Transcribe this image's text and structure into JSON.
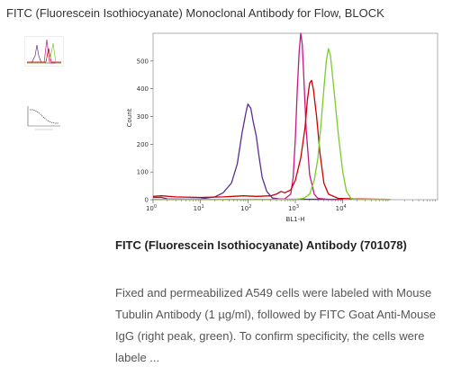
{
  "header": {
    "title": "FITC (Fluorescein Isothiocyanate) Monoclonal Antibody for Flow, BLOCK"
  },
  "thumbnails": [
    {
      "name": "flow-histogram-thumbnail"
    },
    {
      "name": "titration-curve-thumbnail"
    }
  ],
  "chart_data": {
    "type": "line",
    "title": "",
    "xlabel": "BL1-H",
    "ylabel": "Count",
    "x_scale": "log",
    "xlim": [
      1,
      1000000
    ],
    "ylim": [
      0,
      600
    ],
    "x_ticks": [
      {
        "value": 1,
        "mantissa": "10",
        "exp": "0"
      },
      {
        "value": 10,
        "mantissa": "10",
        "exp": "1"
      },
      {
        "value": 100,
        "mantissa": "10",
        "exp": "2"
      },
      {
        "value": 1000,
        "mantissa": "10",
        "exp": "3"
      },
      {
        "value": 10000,
        "mantissa": "10",
        "exp": "4"
      }
    ],
    "y_ticks": [
      0,
      100,
      200,
      300,
      400,
      500
    ],
    "series": [
      {
        "color": "#5b2c91",
        "points": [
          [
            1,
            8
          ],
          [
            1.5,
            8
          ],
          [
            2,
            3
          ],
          [
            5,
            2
          ],
          [
            10,
            3
          ],
          [
            20,
            10
          ],
          [
            30,
            25
          ],
          [
            45,
            60
          ],
          [
            60,
            130
          ],
          [
            75,
            240
          ],
          [
            90,
            310
          ],
          [
            100,
            345
          ],
          [
            115,
            330
          ],
          [
            130,
            280
          ],
          [
            150,
            230
          ],
          [
            170,
            160
          ],
          [
            200,
            80
          ],
          [
            250,
            30
          ],
          [
            330,
            6
          ],
          [
            500,
            2
          ],
          [
            10000,
            1
          ]
        ]
      },
      {
        "color": "#c71585",
        "points": [
          [
            1,
            1
          ],
          [
            300,
            1
          ],
          [
            600,
            3
          ],
          [
            800,
            20
          ],
          [
            900,
            80
          ],
          [
            1000,
            220
          ],
          [
            1100,
            400
          ],
          [
            1200,
            530
          ],
          [
            1300,
            600
          ],
          [
            1400,
            560
          ],
          [
            1500,
            450
          ],
          [
            1700,
            250
          ],
          [
            2000,
            90
          ],
          [
            2500,
            20
          ],
          [
            3000,
            5
          ],
          [
            5000,
            1
          ],
          [
            10000,
            1
          ]
        ]
      },
      {
        "color": "#cc0000",
        "points": [
          [
            1,
            12
          ],
          [
            1.5,
            14
          ],
          [
            3,
            10
          ],
          [
            10,
            8
          ],
          [
            30,
            10
          ],
          [
            80,
            14
          ],
          [
            150,
            12
          ],
          [
            300,
            14
          ],
          [
            400,
            20
          ],
          [
            500,
            30
          ],
          [
            600,
            25
          ],
          [
            800,
            35
          ],
          [
            1000,
            70
          ],
          [
            1300,
            150
          ],
          [
            1600,
            260
          ],
          [
            1800,
            360
          ],
          [
            2000,
            420
          ],
          [
            2200,
            430
          ],
          [
            2400,
            400
          ],
          [
            2800,
            300
          ],
          [
            3300,
            170
          ],
          [
            4000,
            60
          ],
          [
            5000,
            20
          ],
          [
            8000,
            5
          ],
          [
            20000,
            3
          ],
          [
            100000,
            1
          ]
        ]
      },
      {
        "color": "#7acc29",
        "points": [
          [
            1,
            1
          ],
          [
            1000,
            1
          ],
          [
            1500,
            5
          ],
          [
            2000,
            20
          ],
          [
            2500,
            70
          ],
          [
            3000,
            150
          ],
          [
            3500,
            280
          ],
          [
            4000,
            400
          ],
          [
            4500,
            500
          ],
          [
            5000,
            545
          ],
          [
            5500,
            520
          ],
          [
            6500,
            400
          ],
          [
            8000,
            240
          ],
          [
            10000,
            100
          ],
          [
            12000,
            30
          ],
          [
            15000,
            5
          ],
          [
            20000,
            1
          ],
          [
            100000,
            1
          ]
        ]
      }
    ]
  },
  "caption": {
    "title": "FITC (Fluorescein Isothiocyanate) Antibody (701078)",
    "body": "Fixed and permeabilized A549 cells were labeled with Mouse Tubulin Antibody (1 µg/ml), followed by FITC Goat Anti-Mouse IgG (right peak, green). To confirm specificity, the cells were labele ..."
  }
}
